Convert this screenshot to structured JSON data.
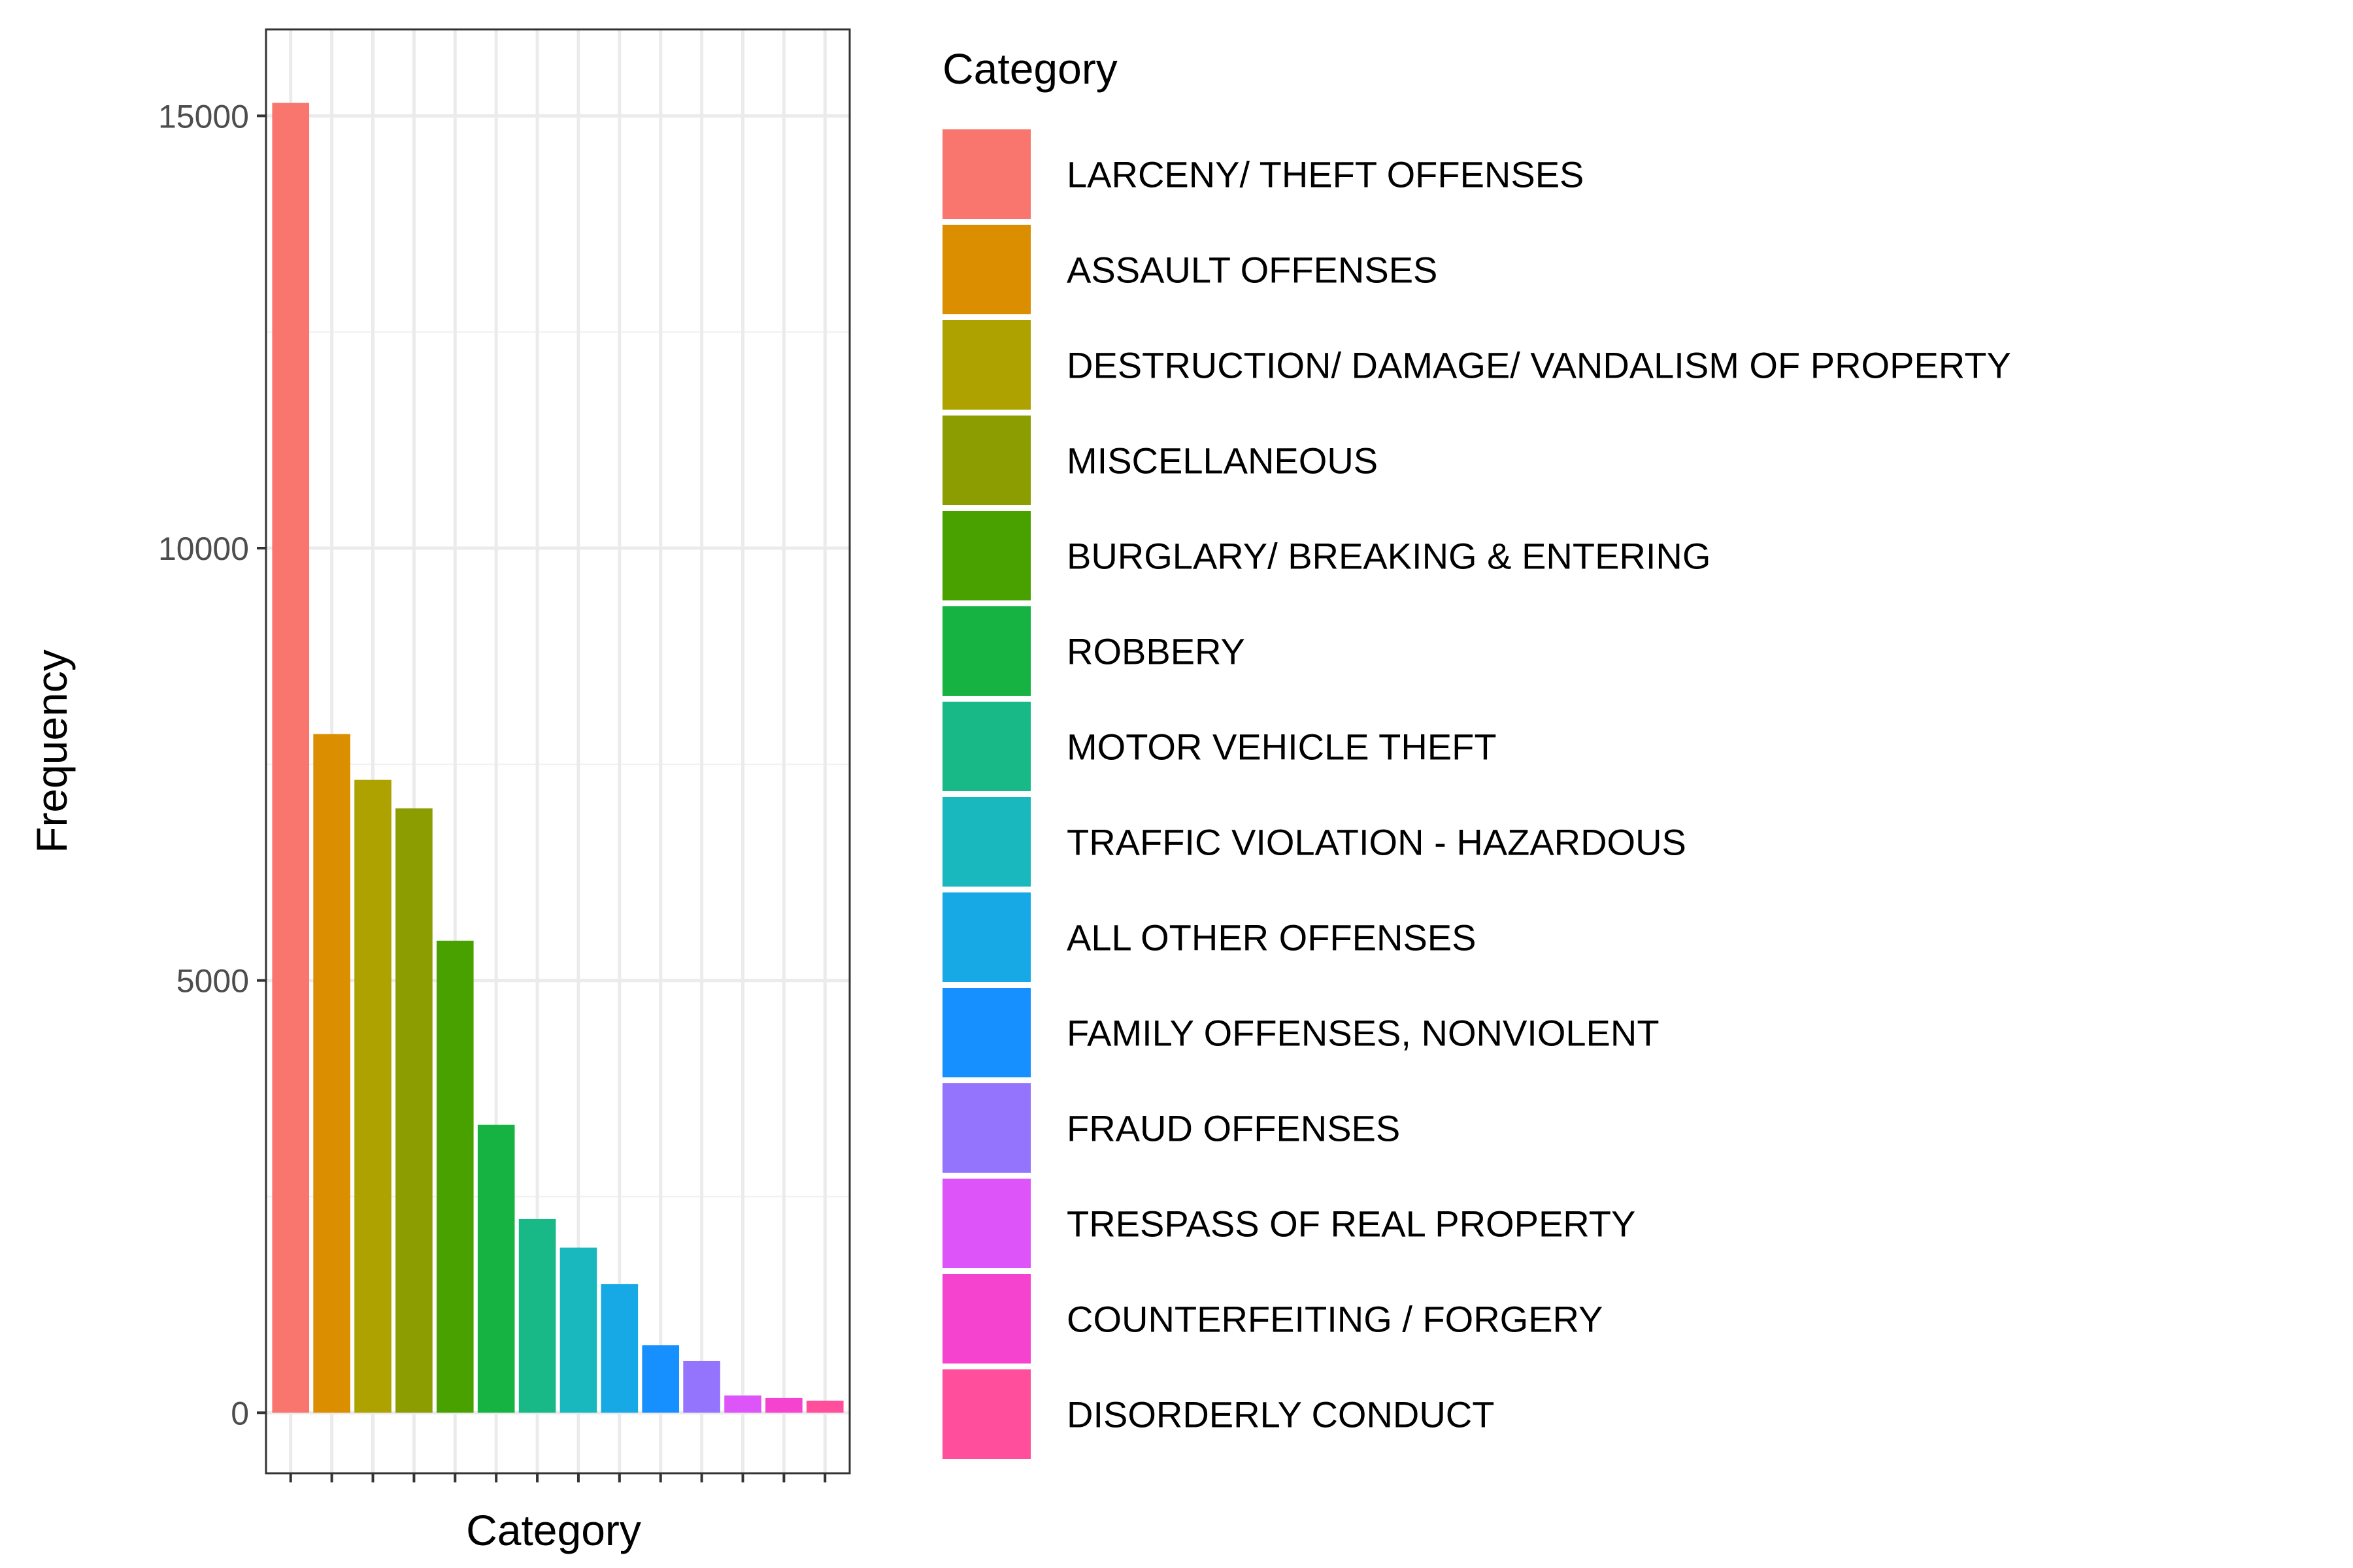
{
  "chart_data": {
    "type": "bar",
    "title": "",
    "xlabel": "Category",
    "ylabel": "Frequency",
    "ylim": [
      -700,
      16000
    ],
    "yticks": [
      0,
      5000,
      10000,
      15000
    ],
    "y_tick_labels": [
      "0",
      "5000",
      "10000",
      "15000"
    ],
    "grid": true,
    "legend_position": "right",
    "legend_title": "Category",
    "categories": [
      "LARCENY/ THEFT OFFENSES",
      "ASSAULT OFFENSES",
      "DESTRUCTION/ DAMAGE/ VANDALISM OF PROPERTY",
      "MISCELLANEOUS",
      "BURGLARY/ BREAKING & ENTERING",
      "ROBBERY",
      "MOTOR VEHICLE THEFT",
      "TRAFFIC VIOLATION - HAZARDOUS",
      "ALL OTHER OFFENSES",
      "FAMILY OFFENSES, NONVIOLENT",
      "FRAUD OFFENSES",
      "TRESPASS OF REAL PROPERTY",
      "COUNTERFEITING / FORGERY",
      "DISORDERLY CONDUCT"
    ],
    "values": [
      15150,
      7850,
      7320,
      6990,
      5460,
      3330,
      2240,
      1910,
      1490,
      780,
      600,
      200,
      170,
      140
    ],
    "colors": [
      "#F8766D",
      "#DB8E00",
      "#AEA200",
      "#8B9D00",
      "#49A100",
      "#16B343",
      "#18B987",
      "#18B8BE",
      "#17A9E6",
      "#1690FF",
      "#9574FD",
      "#DD55F8",
      "#F543D0",
      "#FF4E9B"
    ]
  }
}
